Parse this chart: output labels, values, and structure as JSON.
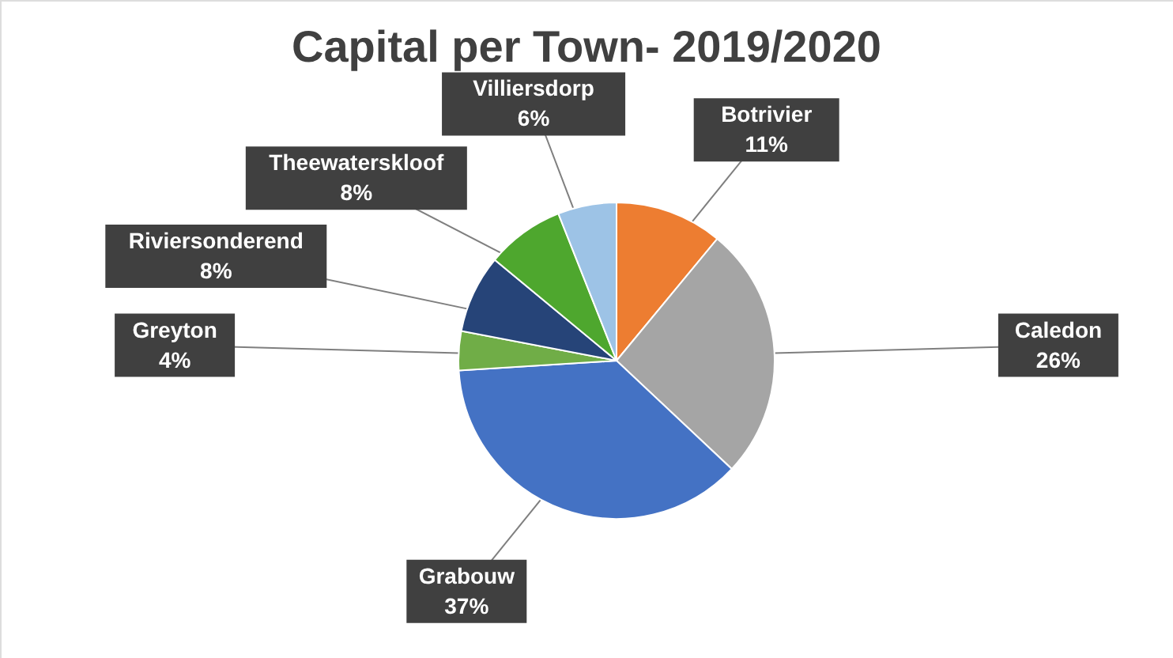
{
  "chart_data": {
    "type": "pie",
    "title": "Capital per Town- 2019/2020",
    "categories": [
      "Botrivier",
      "Caledon",
      "Grabouw",
      "Greyton",
      "Riviersonderend",
      "Theewaterskloof",
      "Villiersdorp"
    ],
    "values": [
      11,
      26,
      37,
      4,
      8,
      8,
      6
    ],
    "colors": [
      "#ed7d31",
      "#a5a5a5",
      "#4472c4",
      "#70ad47",
      "#264478",
      "#4ea72e",
      "#9dc3e6"
    ],
    "value_labels": [
      "11%",
      "26%",
      "37%",
      "4%",
      "8%",
      "8%",
      "6%"
    ]
  }
}
